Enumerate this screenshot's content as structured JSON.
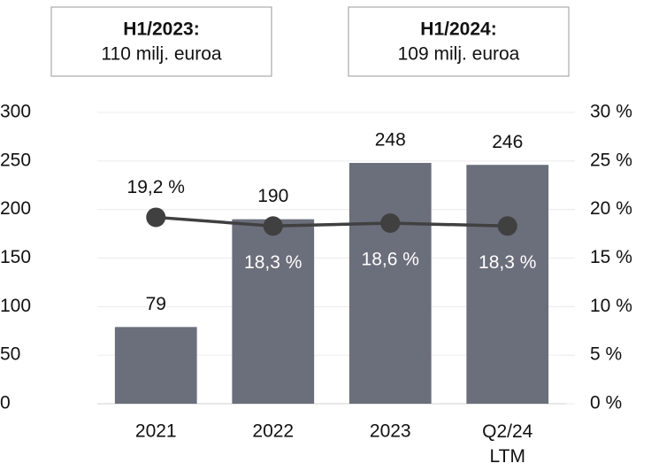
{
  "chart_data": {
    "type": "bar",
    "annotations": [
      {
        "title": "H1/2023:",
        "text": "110 milj. euroa"
      },
      {
        "title": "H1/2024:",
        "text": "109 milj. euroa"
      }
    ],
    "categories": [
      "2021",
      "2022",
      "2023",
      "Q2/24 LTM"
    ],
    "series": [
      {
        "type": "bar",
        "color": "#6b6e7b",
        "values": [
          79,
          190,
          248,
          246
        ]
      },
      {
        "type": "line",
        "axis": "y2",
        "color": "#404040",
        "values": [
          19.2,
          18.3,
          18.6,
          18.3
        ],
        "value_labels": [
          "19,2 %",
          "18,3 %",
          "18,6 %",
          "18,3 %"
        ]
      }
    ],
    "ylim": [
      0,
      300
    ],
    "yticks": [
      0,
      50,
      100,
      150,
      200,
      250,
      300
    ],
    "y2lim": [
      0,
      30
    ],
    "y2ticks": [
      {
        "value": 0,
        "label": "0 %"
      },
      {
        "value": 5,
        "label": "5 %"
      },
      {
        "value": 10,
        "label": "10 %"
      },
      {
        "value": 15,
        "label": "15 %"
      },
      {
        "value": 20,
        "label": "20 %"
      },
      {
        "value": 25,
        "label": "25 %"
      },
      {
        "value": 30,
        "label": "30 %"
      }
    ],
    "grid": true
  }
}
